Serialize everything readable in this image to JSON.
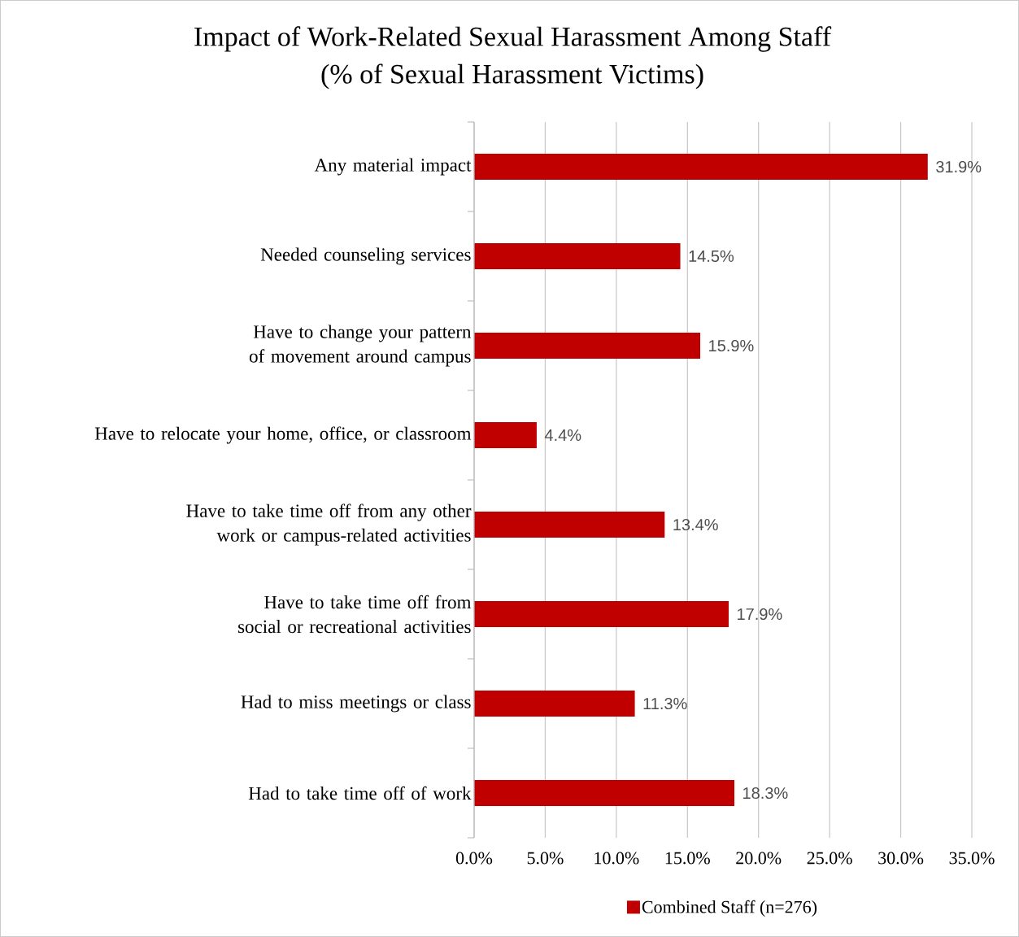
{
  "chart_data": {
    "type": "bar",
    "orientation": "horizontal",
    "title": "Impact of Work-Related Sexual Harassment Among Staff",
    "subtitle": "(% of Sexual Harassment Victims)",
    "categories": [
      "Any material impact",
      "Needed counseling services",
      "Have to change your pattern of movement around campus",
      "Have to relocate your home, office, or classroom",
      "Have to take time off from any other work or campus-related activities",
      "Have to take time off from social or recreational activities",
      "Had to miss meetings or class",
      "Had to take time off of work"
    ],
    "series": [
      {
        "name": "Combined Staff (n=276)",
        "color": "#c00000",
        "values": [
          31.9,
          14.5,
          15.9,
          4.4,
          13.4,
          17.9,
          11.3,
          18.3
        ],
        "value_labels": [
          "31.9%",
          "14.5%",
          "15.9%",
          "4.4%",
          "13.4%",
          "17.9%",
          "11.3%",
          "18.3%"
        ]
      }
    ],
    "xlim": [
      0,
      35
    ],
    "xticks": [
      {
        "value": 0,
        "label": "0.0%"
      },
      {
        "value": 5,
        "label": "5.0%"
      },
      {
        "value": 10,
        "label": "10.0%"
      },
      {
        "value": 15,
        "label": "15.0%"
      },
      {
        "value": 20,
        "label": "20.0%"
      },
      {
        "value": 25,
        "label": "25.0%"
      },
      {
        "value": 30,
        "label": "30.0%"
      },
      {
        "value": 35,
        "label": "35.0%"
      }
    ],
    "grid": "x",
    "legend": "bottom"
  }
}
